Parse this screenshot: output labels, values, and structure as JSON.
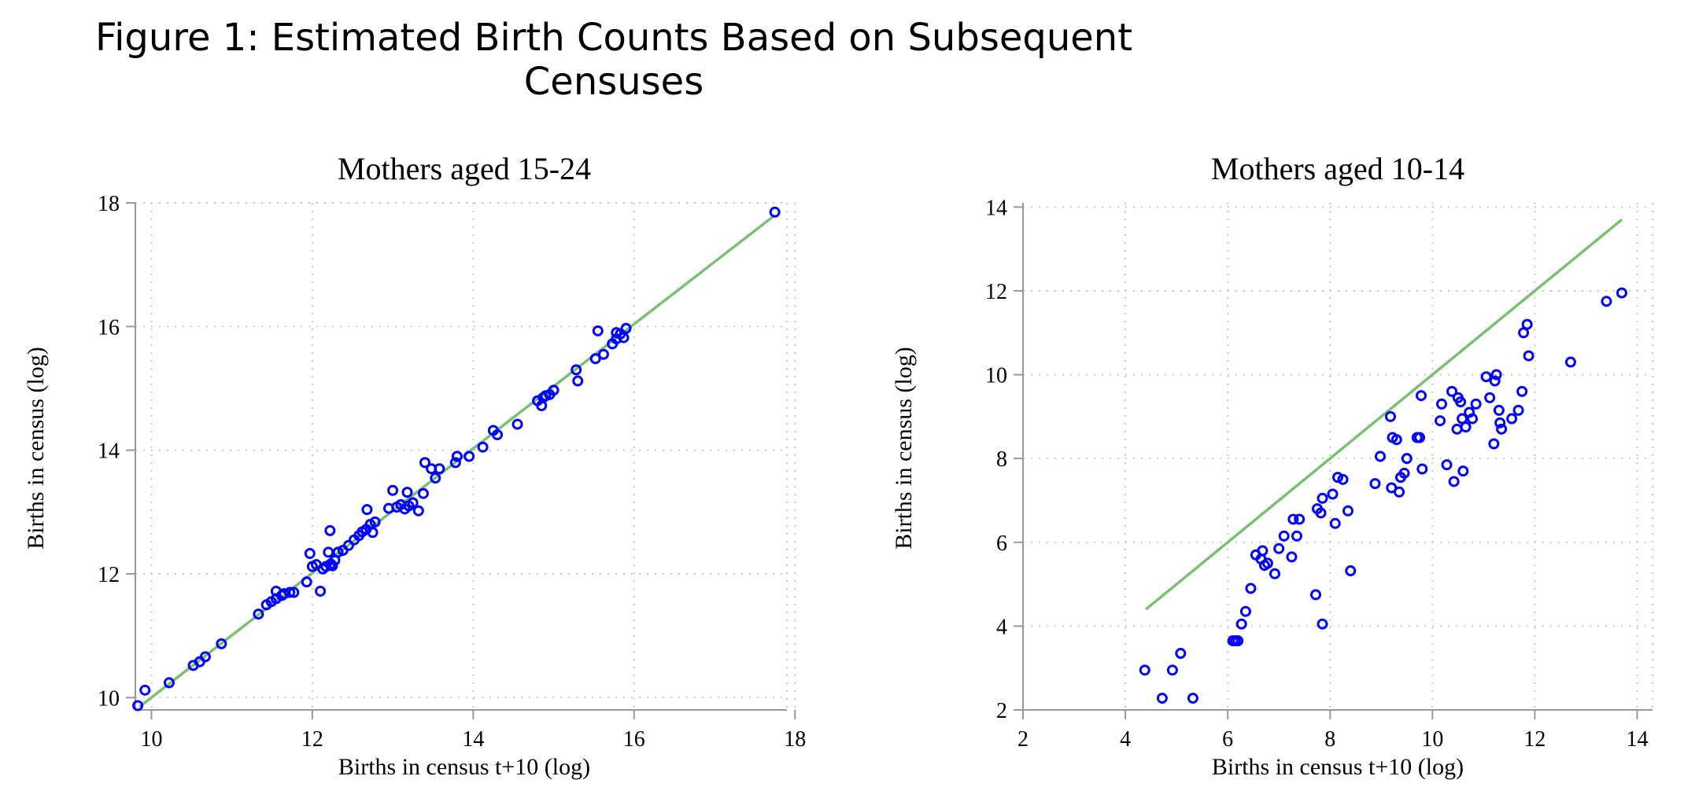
{
  "figure_title": "Figure 1:  Estimated Birth Counts Based on Subsequent Censuses",
  "colors": {
    "points": "#0000ff",
    "line": "#7bbf72",
    "grid": "#c8c8c8",
    "axis": "#999999"
  },
  "chart_data": [
    {
      "type": "scatter",
      "title": "Mothers aged 15-24",
      "xlabel": "Births in census t+10 (log)",
      "ylabel": "Births in census (log)",
      "xlim": [
        9.8,
        17.9
      ],
      "ylim": [
        9.8,
        18.0
      ],
      "xticks": [
        10,
        12,
        14,
        16,
        18
      ],
      "yticks": [
        10,
        12,
        14,
        16,
        18
      ],
      "grid": true,
      "fit_line": {
        "x": [
          9.85,
          17.75
        ],
        "y": [
          9.85,
          17.8
        ]
      },
      "points": [
        [
          9.83,
          9.87
        ],
        [
          9.92,
          10.12
        ],
        [
          10.22,
          10.24
        ],
        [
          10.52,
          10.52
        ],
        [
          10.6,
          10.58
        ],
        [
          10.67,
          10.66
        ],
        [
          10.87,
          10.87
        ],
        [
          11.33,
          11.35
        ],
        [
          11.43,
          11.5
        ],
        [
          11.49,
          11.55
        ],
        [
          11.55,
          11.6
        ],
        [
          11.55,
          11.72
        ],
        [
          11.62,
          11.65
        ],
        [
          11.65,
          11.68
        ],
        [
          11.72,
          11.7
        ],
        [
          11.77,
          11.7
        ],
        [
          11.93,
          11.87
        ],
        [
          11.97,
          12.33
        ],
        [
          12.0,
          12.12
        ],
        [
          12.05,
          12.15
        ],
        [
          12.1,
          11.72
        ],
        [
          12.13,
          12.08
        ],
        [
          12.17,
          12.12
        ],
        [
          12.2,
          12.35
        ],
        [
          12.22,
          12.7
        ],
        [
          12.23,
          12.16
        ],
        [
          12.25,
          12.13
        ],
        [
          12.28,
          12.22
        ],
        [
          12.32,
          12.35
        ],
        [
          12.38,
          12.38
        ],
        [
          12.45,
          12.46
        ],
        [
          12.52,
          12.55
        ],
        [
          12.58,
          12.62
        ],
        [
          12.62,
          12.68
        ],
        [
          12.67,
          12.72
        ],
        [
          12.68,
          13.04
        ],
        [
          12.72,
          12.8
        ],
        [
          12.75,
          12.67
        ],
        [
          12.78,
          12.84
        ],
        [
          12.95,
          13.06
        ],
        [
          13.0,
          13.35
        ],
        [
          13.05,
          13.08
        ],
        [
          13.1,
          13.12
        ],
        [
          13.15,
          13.05
        ],
        [
          13.18,
          13.32
        ],
        [
          13.2,
          13.1
        ],
        [
          13.25,
          13.15
        ],
        [
          13.32,
          13.02
        ],
        [
          13.38,
          13.3
        ],
        [
          13.4,
          13.8
        ],
        [
          13.48,
          13.7
        ],
        [
          13.53,
          13.55
        ],
        [
          13.58,
          13.7
        ],
        [
          13.78,
          13.8
        ],
        [
          13.8,
          13.9
        ],
        [
          13.95,
          13.9
        ],
        [
          14.12,
          14.05
        ],
        [
          14.25,
          14.32
        ],
        [
          14.3,
          14.25
        ],
        [
          14.55,
          14.42
        ],
        [
          14.8,
          14.8
        ],
        [
          14.85,
          14.72
        ],
        [
          14.87,
          14.85
        ],
        [
          14.9,
          14.88
        ],
        [
          14.95,
          14.9
        ],
        [
          15.0,
          14.97
        ],
        [
          15.28,
          15.3
        ],
        [
          15.3,
          15.12
        ],
        [
          15.52,
          15.48
        ],
        [
          15.55,
          15.93
        ],
        [
          15.62,
          15.55
        ],
        [
          15.73,
          15.72
        ],
        [
          15.78,
          15.8
        ],
        [
          15.78,
          15.9
        ],
        [
          15.83,
          15.88
        ],
        [
          15.87,
          15.82
        ],
        [
          15.9,
          15.97
        ],
        [
          17.75,
          17.85
        ]
      ]
    },
    {
      "type": "scatter",
      "title": "Mothers aged 10-14",
      "xlabel": "Births in census t+10 (log)",
      "ylabel": "Births in census (log)",
      "xlim": [
        2.0,
        14.3
      ],
      "ylim": [
        2.0,
        14.1
      ],
      "xticks": [
        2,
        4,
        6,
        8,
        10,
        12,
        14
      ],
      "yticks": [
        2,
        4,
        6,
        8,
        10,
        12,
        14
      ],
      "grid": true,
      "fit_line": {
        "x": [
          4.4,
          13.7
        ],
        "y": [
          4.4,
          13.7
        ]
      },
      "points": [
        [
          4.38,
          2.95
        ],
        [
          4.72,
          2.28
        ],
        [
          4.92,
          2.95
        ],
        [
          5.08,
          3.35
        ],
        [
          5.32,
          2.28
        ],
        [
          6.1,
          3.65
        ],
        [
          6.15,
          3.65
        ],
        [
          6.2,
          3.65
        ],
        [
          6.27,
          4.05
        ],
        [
          6.35,
          4.35
        ],
        [
          6.45,
          4.9
        ],
        [
          6.55,
          5.7
        ],
        [
          6.65,
          5.6
        ],
        [
          6.68,
          5.8
        ],
        [
          6.72,
          5.45
        ],
        [
          6.78,
          5.5
        ],
        [
          6.92,
          5.25
        ],
        [
          7.0,
          5.85
        ],
        [
          7.1,
          6.15
        ],
        [
          7.25,
          5.65
        ],
        [
          7.28,
          6.55
        ],
        [
          7.35,
          6.15
        ],
        [
          7.4,
          6.55
        ],
        [
          7.72,
          4.75
        ],
        [
          7.75,
          6.8
        ],
        [
          7.82,
          6.7
        ],
        [
          7.85,
          4.05
        ],
        [
          7.85,
          7.05
        ],
        [
          8.05,
          7.15
        ],
        [
          8.1,
          6.45
        ],
        [
          8.15,
          7.55
        ],
        [
          8.25,
          7.5
        ],
        [
          8.35,
          6.75
        ],
        [
          8.4,
          5.32
        ],
        [
          8.88,
          7.4
        ],
        [
          8.98,
          8.05
        ],
        [
          9.18,
          9.0
        ],
        [
          9.2,
          7.3
        ],
        [
          9.22,
          8.5
        ],
        [
          9.3,
          8.45
        ],
        [
          9.35,
          7.2
        ],
        [
          9.38,
          7.55
        ],
        [
          9.45,
          7.65
        ],
        [
          9.5,
          8.0
        ],
        [
          9.7,
          8.5
        ],
        [
          9.75,
          8.5
        ],
        [
          9.78,
          9.5
        ],
        [
          9.8,
          7.75
        ],
        [
          10.15,
          8.9
        ],
        [
          10.18,
          9.3
        ],
        [
          10.28,
          7.85
        ],
        [
          10.38,
          9.6
        ],
        [
          10.42,
          7.45
        ],
        [
          10.48,
          8.7
        ],
        [
          10.5,
          9.45
        ],
        [
          10.55,
          9.35
        ],
        [
          10.58,
          8.95
        ],
        [
          10.6,
          7.7
        ],
        [
          10.65,
          8.75
        ],
        [
          10.72,
          9.1
        ],
        [
          10.78,
          8.95
        ],
        [
          10.85,
          9.3
        ],
        [
          11.05,
          9.95
        ],
        [
          11.12,
          9.45
        ],
        [
          11.2,
          8.35
        ],
        [
          11.22,
          9.85
        ],
        [
          11.25,
          10.0
        ],
        [
          11.3,
          9.15
        ],
        [
          11.32,
          8.85
        ],
        [
          11.35,
          8.7
        ],
        [
          11.55,
          8.95
        ],
        [
          11.68,
          9.15
        ],
        [
          11.75,
          9.6
        ],
        [
          11.78,
          11.0
        ],
        [
          11.85,
          11.2
        ],
        [
          11.88,
          10.45
        ],
        [
          12.7,
          10.3
        ],
        [
          13.4,
          11.75
        ],
        [
          13.7,
          11.95
        ]
      ]
    }
  ]
}
